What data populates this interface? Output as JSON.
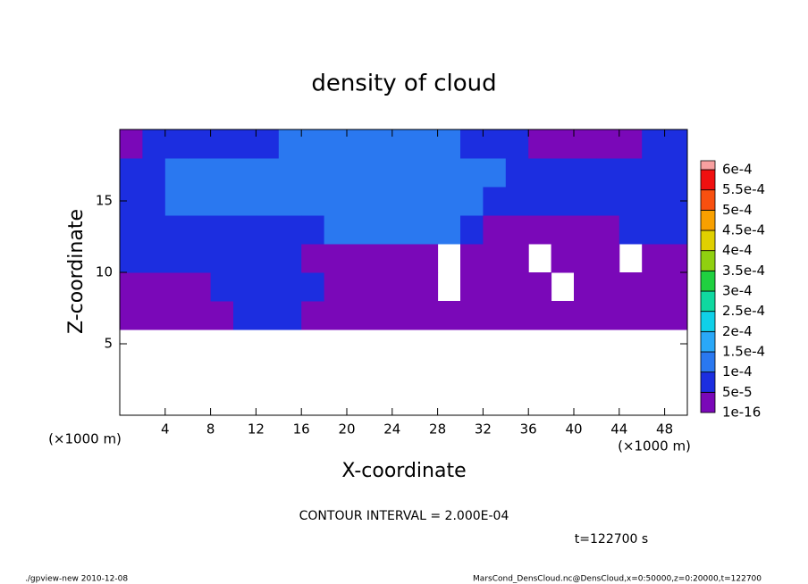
{
  "chart_data": {
    "type": "heatmap",
    "title": "density of cloud",
    "x_label": "X-coordinate",
    "y_label": "Z-coordinate",
    "x_unit": "(×1000 m)",
    "y_unit": "(×1000 m)",
    "contour_note": "CONTOUR INTERVAL = 2.000E-04",
    "time_note": "t=122700 s",
    "footer_left": "./gpview-new  2010-12-08",
    "footer_right": "MarsCond_DensCloud.nc@DensCloud,x=0:50000,z=0:20000,t=122700",
    "xlim": [
      0,
      50
    ],
    "ylim": [
      0,
      20
    ],
    "xticks": [
      4,
      8,
      12,
      16,
      20,
      24,
      28,
      32,
      36,
      40,
      44,
      48
    ],
    "yticks": [
      5,
      10,
      15
    ],
    "x": [
      1,
      3,
      5,
      7,
      9,
      11,
      13,
      15,
      17,
      19,
      21,
      23,
      25,
      27,
      29,
      31,
      33,
      35,
      37,
      39,
      41,
      43,
      45,
      47,
      49
    ],
    "y": [
      1,
      3,
      5,
      7,
      9,
      11,
      13,
      15,
      17,
      19
    ],
    "z": [
      [
        null,
        null,
        null,
        null,
        null,
        null,
        null,
        null,
        null,
        null,
        null,
        null,
        null,
        null,
        null,
        null,
        null,
        null,
        null,
        null,
        null,
        null,
        null,
        null,
        null
      ],
      [
        null,
        null,
        null,
        null,
        null,
        null,
        null,
        null,
        null,
        null,
        null,
        null,
        null,
        null,
        null,
        null,
        null,
        null,
        null,
        null,
        null,
        null,
        null,
        null,
        null
      ],
      [
        null,
        null,
        null,
        null,
        null,
        null,
        null,
        null,
        null,
        null,
        null,
        null,
        null,
        null,
        null,
        null,
        null,
        null,
        null,
        null,
        null,
        null,
        null,
        null,
        null
      ],
      [
        3e-05,
        3e-05,
        3e-05,
        3e-05,
        3e-05,
        7e-05,
        7e-05,
        7e-05,
        3e-05,
        3e-05,
        3e-05,
        3e-05,
        3e-05,
        3e-05,
        3e-05,
        3e-05,
        3e-05,
        3e-05,
        3e-05,
        3e-05,
        3e-05,
        3e-05,
        3e-05,
        3e-05,
        3e-05
      ],
      [
        3e-05,
        3e-05,
        3e-05,
        3e-05,
        7e-05,
        7e-05,
        7e-05,
        7e-05,
        7e-05,
        3e-05,
        3e-05,
        3e-05,
        3e-05,
        3e-05,
        null,
        3e-05,
        3e-05,
        3e-05,
        3e-05,
        null,
        3e-05,
        3e-05,
        3e-05,
        3e-05,
        3e-05
      ],
      [
        7e-05,
        7e-05,
        7e-05,
        7e-05,
        7e-05,
        7e-05,
        7e-05,
        7e-05,
        3e-05,
        3e-05,
        3e-05,
        3e-05,
        3e-05,
        3e-05,
        null,
        3e-05,
        3e-05,
        3e-05,
        null,
        3e-05,
        3e-05,
        3e-05,
        null,
        3e-05,
        3e-05
      ],
      [
        7e-05,
        7e-05,
        7e-05,
        7e-05,
        7e-05,
        7e-05,
        7e-05,
        7e-05,
        7e-05,
        0.00012,
        0.00012,
        0.00012,
        0.00012,
        0.00012,
        0.00012,
        7e-05,
        3e-05,
        3e-05,
        3e-05,
        3e-05,
        3e-05,
        3e-05,
        7e-05,
        7e-05,
        7e-05
      ],
      [
        7e-05,
        7e-05,
        0.00012,
        0.00012,
        0.00012,
        0.00012,
        0.00012,
        0.00012,
        0.00012,
        0.00012,
        0.00012,
        0.00012,
        0.00012,
        0.00012,
        0.00012,
        0.00012,
        7e-05,
        7e-05,
        7e-05,
        7e-05,
        7e-05,
        7e-05,
        7e-05,
        7e-05,
        7e-05
      ],
      [
        7e-05,
        7e-05,
        0.00012,
        0.00012,
        0.00012,
        0.00012,
        0.00012,
        0.00012,
        0.00012,
        0.00012,
        0.00012,
        0.00012,
        0.00012,
        0.00012,
        0.00012,
        0.00012,
        0.00012,
        7e-05,
        7e-05,
        7e-05,
        7e-05,
        7e-05,
        7e-05,
        7e-05,
        7e-05
      ],
      [
        3e-05,
        7e-05,
        7e-05,
        7e-05,
        7e-05,
        7e-05,
        7e-05,
        0.00012,
        0.00012,
        0.00012,
        0.00012,
        0.00012,
        0.00012,
        0.00012,
        0.00012,
        7e-05,
        7e-05,
        7e-05,
        3e-05,
        3e-05,
        3e-05,
        3e-05,
        3e-05,
        7e-05,
        7e-05
      ]
    ],
    "levels": [
      {
        "value": 1e-16,
        "label": "1e-16"
      },
      {
        "value": 5e-05,
        "label": "5e-5"
      },
      {
        "value": 0.0001,
        "label": "1e-4"
      },
      {
        "value": 0.00015,
        "label": "1.5e-4"
      },
      {
        "value": 0.0002,
        "label": "2e-4"
      },
      {
        "value": 0.00025,
        "label": "2.5e-4"
      },
      {
        "value": 0.0003,
        "label": "3e-4"
      },
      {
        "value": 0.00035,
        "label": "3.5e-4"
      },
      {
        "value": 0.0004,
        "label": "4e-4"
      },
      {
        "value": 0.00045,
        "label": "4.5e-4"
      },
      {
        "value": 0.0005,
        "label": "5e-4"
      },
      {
        "value": 0.00055,
        "label": "5.5e-4"
      },
      {
        "value": 0.0006,
        "label": "6e-4"
      }
    ],
    "level_colors": [
      "#7a08b8",
      "#1c2ee0",
      "#2a78f0",
      "#2aa8f8",
      "#10d0e8",
      "#10d8a0",
      "#20d040",
      "#90d010",
      "#e0d000",
      "#f8a000",
      "#f85010",
      "#f01010",
      "#f8a0a0"
    ]
  }
}
